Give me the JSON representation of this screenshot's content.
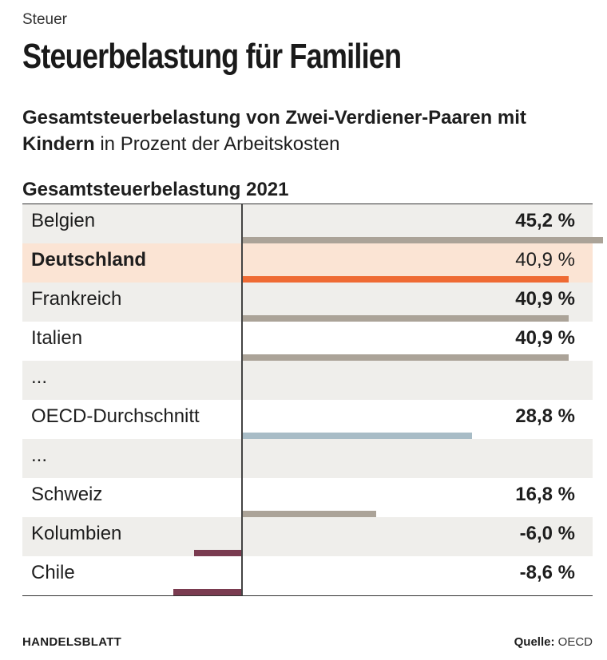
{
  "header": {
    "kicker": "Steuer",
    "title": "Steuerbelastung für Familien",
    "subtitle_bold": "Gesamtsteuerbelastung von Zwei-Verdiener-Paaren mit Kindern",
    "subtitle_rest": " in Prozent der Arbeitskosten"
  },
  "footer": {
    "brand": "HANDELSBLATT",
    "source_label": "Quelle:",
    "source_value": "OECD"
  },
  "colors": {
    "default_bar": "#aba398",
    "highlight_bar": "#ef6a33",
    "average_bar": "#a8bcc6",
    "negative_bar": "#7a3b50"
  },
  "chart_data": {
    "type": "bar",
    "title": "Gesamtsteuerbelastung 2021",
    "unit": "%",
    "xlim": [
      -8.6,
      45.2
    ],
    "rows": [
      {
        "label": "Belgien",
        "value": 45.2,
        "display": "45,2 %",
        "kind": "default"
      },
      {
        "label": "Deutschland",
        "value": 40.9,
        "display": "40,9 %",
        "kind": "highlight"
      },
      {
        "label": "Frankreich",
        "value": 40.9,
        "display": "40,9 %",
        "kind": "default"
      },
      {
        "label": "Italien",
        "value": 40.9,
        "display": "40,9 %",
        "kind": "default"
      },
      {
        "label": "...",
        "value": null,
        "display": "",
        "kind": "ellipsis"
      },
      {
        "label": "OECD-Durchschnitt",
        "value": 28.8,
        "display": "28,8 %",
        "kind": "average"
      },
      {
        "label": "...",
        "value": null,
        "display": "",
        "kind": "ellipsis"
      },
      {
        "label": "Schweiz",
        "value": 16.8,
        "display": "16,8 %",
        "kind": "default"
      },
      {
        "label": "Kolumbien",
        "value": -6.0,
        "display": "-6,0 %",
        "kind": "negative"
      },
      {
        "label": "Chile",
        "value": -8.6,
        "display": "-8,6 %",
        "kind": "negative"
      }
    ]
  }
}
